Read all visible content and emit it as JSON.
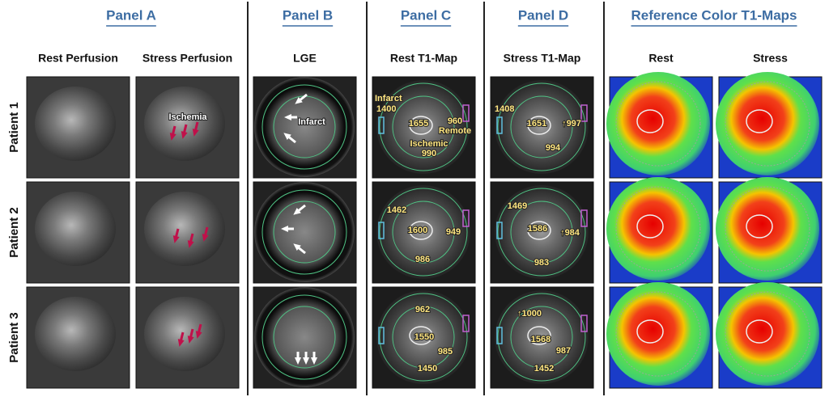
{
  "panels": [
    {
      "title": "Panel A"
    },
    {
      "title": "Panel B"
    },
    {
      "title": "Panel C"
    },
    {
      "title": "Panel D"
    },
    {
      "title": "Reference Color T1-Maps"
    }
  ],
  "columns": [
    "Rest Perfusion",
    "Stress Perfusion",
    "LGE",
    "Rest T1-Map",
    "Stress T1-Map",
    "Rest",
    "Stress"
  ],
  "rows": [
    {
      "label": "Patient 1",
      "cells": [
        [],
        [
          "Ischemia"
        ],
        [
          "Infarct"
        ],
        [
          "Infarct",
          "1400",
          "1655",
          "960",
          "Remote",
          "Ischemic",
          "990"
        ],
        [
          "1408",
          "1651",
          "↑997",
          "994"
        ],
        [],
        []
      ]
    },
    {
      "label": "Patient 2",
      "cells": [
        [],
        [],
        [],
        [
          "1462",
          "1600",
          "949",
          "986"
        ],
        [
          "1469",
          "1586",
          "↑984",
          "983"
        ],
        [],
        []
      ]
    },
    {
      "label": "Patient 3",
      "cells": [
        [],
        [],
        [],
        [
          "962",
          "1550",
          "985",
          "1450"
        ],
        [
          "↑1000",
          "1568",
          "987",
          "1452"
        ],
        [],
        []
      ]
    }
  ]
}
